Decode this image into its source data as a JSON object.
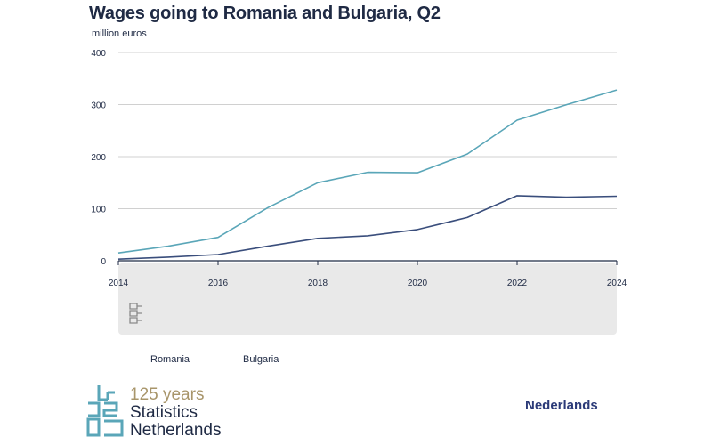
{
  "header": {
    "title": "Wages going to Romania and Bulgaria, Q2",
    "unit": "million euros"
  },
  "chart_data": {
    "type": "line",
    "title": "Wages going to Romania and Bulgaria, Q2",
    "ylabel": "million euros",
    "xlabel": "",
    "x": [
      2014,
      2015,
      2016,
      2017,
      2018,
      2019,
      2020,
      2021,
      2022,
      2023,
      2024
    ],
    "xticks": [
      "2014",
      "2016",
      "2018",
      "2020",
      "2022",
      "2024"
    ],
    "yticks": [
      "0",
      "100",
      "200",
      "300",
      "400"
    ],
    "ylim": [
      0,
      400
    ],
    "xlim": [
      2014,
      2024
    ],
    "grid": true,
    "series": [
      {
        "name": "Romania",
        "color": "#5aa6b8",
        "values": [
          15,
          28,
          45,
          102,
          150,
          170,
          169,
          205,
          270,
          300,
          328
        ]
      },
      {
        "name": "Bulgaria",
        "color": "#3a4e7c",
        "values": [
          3,
          7,
          12,
          28,
          43,
          48,
          60,
          83,
          125,
          122,
          124
        ]
      }
    ]
  },
  "legend": {
    "items": [
      "Romania",
      "Bulgaria"
    ]
  },
  "footer": {
    "logo_text": "cbs",
    "years": "125 years",
    "org_line1": "Statistics",
    "org_line2": "Netherlands",
    "language_link": "Nederlands"
  },
  "colors": {
    "navy": "#1f2a44",
    "gold": "#a8956a",
    "teal": "#5aa6b8",
    "panel": "#e9e9e9"
  }
}
